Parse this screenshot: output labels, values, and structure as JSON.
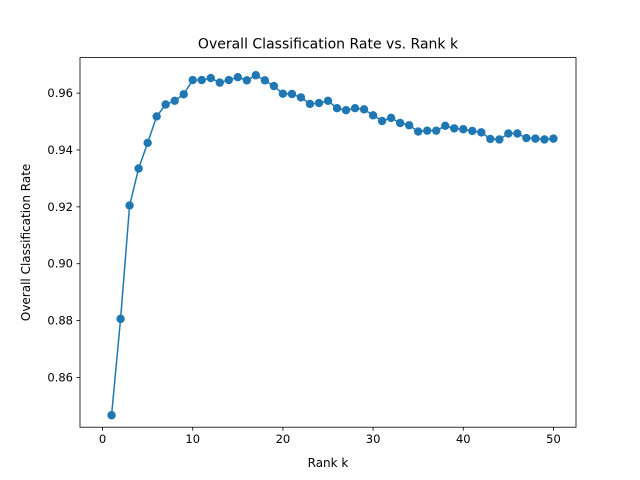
{
  "chart_data": {
    "type": "line",
    "title": "Overall Classification Rate vs. Rank k",
    "xlabel": "Rank k",
    "ylabel": "Overall Classification Rate",
    "xlim": [
      -2.5,
      52.5
    ],
    "ylim": [
      0.8425,
      0.9725
    ],
    "xticks": [
      0,
      10,
      20,
      30,
      40,
      50
    ],
    "yticks": [
      0.86,
      0.88,
      0.9,
      0.92,
      0.94,
      0.96
    ],
    "ytick_labels": [
      "0.86",
      "0.88",
      "0.90",
      "0.92",
      "0.94",
      "0.96"
    ],
    "grid": false,
    "marker": "circle",
    "series": [
      {
        "color": "#1f77b4",
        "x": [
          1,
          2,
          3,
          4,
          5,
          6,
          7,
          8,
          9,
          10,
          11,
          12,
          13,
          14,
          15,
          16,
          17,
          18,
          19,
          20,
          21,
          22,
          23,
          24,
          25,
          26,
          27,
          28,
          29,
          30,
          31,
          32,
          33,
          34,
          35,
          36,
          37,
          38,
          39,
          40,
          41,
          42,
          43,
          44,
          45,
          46,
          47,
          48,
          49,
          50
        ],
        "y": [
          0.8467,
          0.8806,
          0.9205,
          0.9335,
          0.9425,
          0.9518,
          0.956,
          0.9573,
          0.9596,
          0.9646,
          0.9646,
          0.9653,
          0.9637,
          0.9646,
          0.9656,
          0.9645,
          0.9663,
          0.9645,
          0.9625,
          0.9598,
          0.9597,
          0.9585,
          0.9562,
          0.9565,
          0.9573,
          0.9547,
          0.954,
          0.9547,
          0.9543,
          0.9522,
          0.9502,
          0.9513,
          0.9495,
          0.9487,
          0.9465,
          0.9468,
          0.9468,
          0.9485,
          0.9476,
          0.9473,
          0.9467,
          0.9462,
          0.9439,
          0.9437,
          0.9458,
          0.9458,
          0.9442,
          0.944,
          0.9437,
          0.944
        ]
      }
    ]
  }
}
